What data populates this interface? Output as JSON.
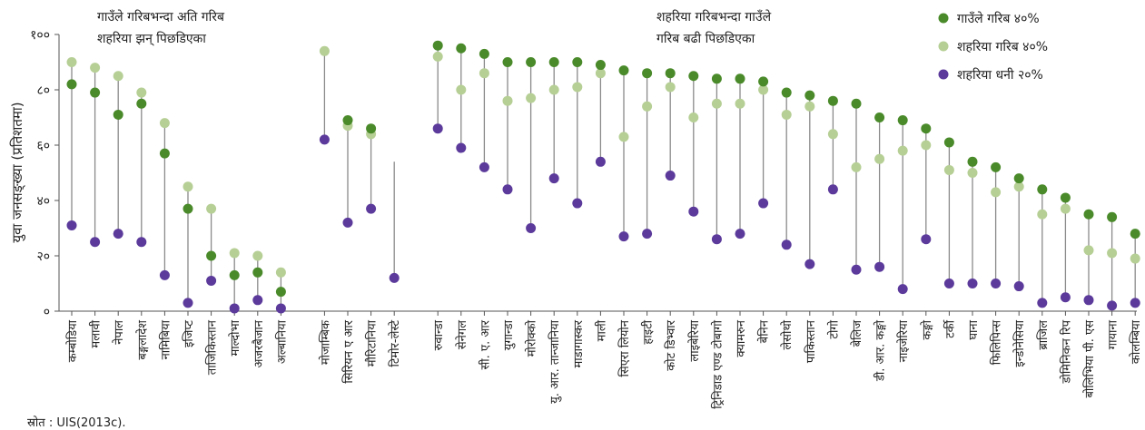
{
  "chart_data": {
    "type": "scatter",
    "ylabel": "युवा जनसङ्ख्या (प्रतिशतमा)",
    "ylim": [
      0,
      100
    ],
    "yticks": [
      {
        "value": 0,
        "label": "०"
      },
      {
        "value": 20,
        "label": "२०"
      },
      {
        "value": 40,
        "label": "४०"
      },
      {
        "value": 60,
        "label": "६०"
      },
      {
        "value": 80,
        "label": "८०"
      },
      {
        "value": 100,
        "label": "१००"
      }
    ],
    "grid": false,
    "legend_position": "top-right",
    "series": [
      {
        "key": "rural",
        "name": "गाउँले गरिब ४०%",
        "color": "#4a8a2a"
      },
      {
        "key": "urban_poor",
        "name": "शहरिया गरिब ४०%",
        "color": "#b6cf95"
      },
      {
        "key": "urban_rich",
        "name": "शहरिया धनी २०%",
        "color": "#5b3a9b"
      }
    ],
    "groups": [
      {
        "annotation": [
          "गाउँले गरिबभन्दा अति गरिब",
          "शहरिया झन् पिछडिएका"
        ],
        "countries": [
          {
            "name": "कम्बोडिया",
            "rural": 82,
            "urban_poor": 90,
            "urban_rich": 31
          },
          {
            "name": "मलावी",
            "rural": 79,
            "urban_poor": 88,
            "urban_rich": 25
          },
          {
            "name": "नेपाल",
            "rural": 71,
            "urban_poor": 85,
            "urban_rich": 28
          },
          {
            "name": "बङ्गलादेश",
            "rural": 75,
            "urban_poor": 79,
            "urban_rich": 25
          },
          {
            "name": "नामिबिया",
            "rural": 57,
            "urban_poor": 68,
            "urban_rich": 13
          },
          {
            "name": "इजिप्ट",
            "rural": 37,
            "urban_poor": 45,
            "urban_rich": 3
          },
          {
            "name": "ताजिकिस्तान",
            "rural": 20,
            "urban_poor": 37,
            "urban_rich": 11
          },
          {
            "name": "माल्दोभा",
            "rural": 13,
            "urban_poor": 21,
            "urban_rich": 1
          },
          {
            "name": "अजरबैजान",
            "rural": 14,
            "urban_poor": 20,
            "urban_rich": 4
          },
          {
            "name": "अल्बानिया",
            "rural": 7,
            "urban_poor": 14,
            "urban_rich": 1
          }
        ]
      },
      {
        "annotation": [],
        "countries": [
          {
            "name": "मोजाम्बिक",
            "rural": null,
            "urban_poor": 94,
            "urban_rich": 62
          },
          {
            "name": "सिरियन ए आर",
            "rural": 69,
            "urban_poor": 67,
            "urban_rich": 32
          },
          {
            "name": "मौरिटानिया",
            "rural": 66,
            "urban_poor": 64,
            "urban_rich": 37
          },
          {
            "name": "टिमोर-लेस्टे",
            "rural": null,
            "urban_poor": null,
            "urban_rich": 12,
            "line_top": 54
          }
        ]
      },
      {
        "annotation": [
          "शहरिया गरिबभन्दा गाउँले",
          "गरिब बढी पिछडिएका"
        ],
        "countries": [
          {
            "name": "रुवान्डा",
            "rural": 96,
            "urban_poor": 92,
            "urban_rich": 66
          },
          {
            "name": "सेनेगल",
            "rural": 95,
            "urban_poor": 80,
            "urban_rich": 59
          },
          {
            "name": "सी. ए. आर",
            "rural": 93,
            "urban_poor": 86,
            "urban_rich": 52
          },
          {
            "name": "युगान्डा",
            "rural": 90,
            "urban_poor": 76,
            "urban_rich": 44
          },
          {
            "name": "मोरोक्को",
            "rural": 90,
            "urban_poor": 77,
            "urban_rich": 30
          },
          {
            "name": "यु. आर. तान्जानिया",
            "rural": 90,
            "urban_poor": 80,
            "urban_rich": 48
          },
          {
            "name": "माडागास्कर",
            "rural": 90,
            "urban_poor": 81,
            "urban_rich": 39
          },
          {
            "name": "माली",
            "rural": 89,
            "urban_poor": 86,
            "urban_rich": 54
          },
          {
            "name": "सिएरा लियोन",
            "rural": 87,
            "urban_poor": 63,
            "urban_rich": 27
          },
          {
            "name": "हाइटी",
            "rural": 86,
            "urban_poor": 74,
            "urban_rich": 28
          },
          {
            "name": "कोट डिभ्वार",
            "rural": 86,
            "urban_poor": 81,
            "urban_rich": 49
          },
          {
            "name": "लाइबेरिया",
            "rural": 85,
            "urban_poor": 70,
            "urban_rich": 36
          },
          {
            "name": "ट्रिनिडाड एण्ड टोबागो",
            "rural": 84,
            "urban_poor": 75,
            "urban_rich": 26
          },
          {
            "name": "क्यामरुन",
            "rural": 84,
            "urban_poor": 75,
            "urban_rich": 28
          },
          {
            "name": "बेनिन",
            "rural": 83,
            "urban_poor": 80,
            "urban_rich": 39
          },
          {
            "name": "लेसोथो",
            "rural": 79,
            "urban_poor": 71,
            "urban_rich": 24
          },
          {
            "name": "पाकिस्तान",
            "rural": 78,
            "urban_poor": 74,
            "urban_rich": 17
          },
          {
            "name": "टोगो",
            "rural": 76,
            "urban_poor": 64,
            "urban_rich": 44
          },
          {
            "name": "बेलिज",
            "rural": 75,
            "urban_poor": 52,
            "urban_rich": 15
          },
          {
            "name": "डी. आर. कङ्गो",
            "rural": 70,
            "urban_poor": 55,
            "urban_rich": 16
          },
          {
            "name": "नाइजेरिया",
            "rural": 69,
            "urban_poor": 58,
            "urban_rich": 8
          },
          {
            "name": "कङ्गो",
            "rural": 66,
            "urban_poor": 60,
            "urban_rich": 26
          },
          {
            "name": "टर्की",
            "rural": 61,
            "urban_poor": 51,
            "urban_rich": 10
          },
          {
            "name": "घाना",
            "rural": 54,
            "urban_poor": 50,
            "urban_rich": 10
          },
          {
            "name": "फिलिपिन्स",
            "rural": 52,
            "urban_poor": 43,
            "urban_rich": 10
          },
          {
            "name": "इन्डोनेसिया",
            "rural": 48,
            "urban_poor": 45,
            "urban_rich": 9
          },
          {
            "name": "ब्राजिल",
            "rural": 44,
            "urban_poor": 35,
            "urban_rich": 3
          },
          {
            "name": "डोमिनिकन रिप",
            "rural": 41,
            "urban_poor": 37,
            "urban_rich": 5
          },
          {
            "name": "बोलिभिया पी. एस",
            "rural": 35,
            "urban_poor": 22,
            "urban_rich": 4
          },
          {
            "name": "गायाना",
            "rural": 34,
            "urban_poor": 21,
            "urban_rich": 2
          },
          {
            "name": "कोलम्बिया",
            "rural": 28,
            "urban_poor": 19,
            "urban_rich": 3
          }
        ]
      }
    ]
  },
  "source_note": "स्रोत : UIS(2013c)."
}
